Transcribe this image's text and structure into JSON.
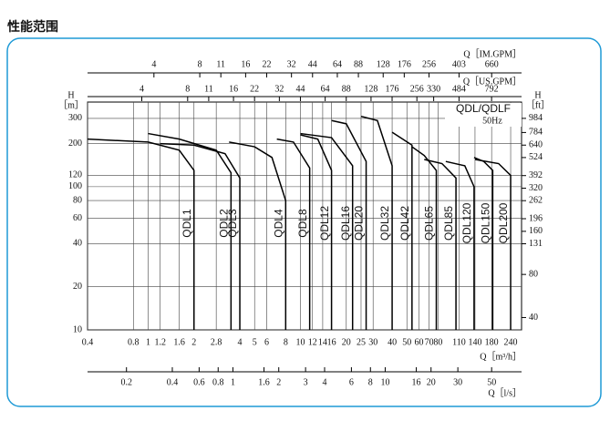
{
  "heading": "性能范围",
  "chart_data": {
    "type": "line",
    "log_x": true,
    "log_y": true,
    "grid": true,
    "legend_title": "QDL/QDLF",
    "legend_subtitle": "50Hz",
    "xlabel": "Q［m³/h］",
    "ylabel": [
      "H",
      "［m］"
    ],
    "y2label": [
      "H",
      "［ft］"
    ],
    "xlim": [
      0.4,
      283
    ],
    "xticks": [
      0.4,
      0.8,
      1,
      1.2,
      1.6,
      2,
      2.8,
      4,
      5,
      6,
      8,
      10,
      12,
      14,
      16,
      20,
      25,
      30,
      40,
      50,
      60,
      70,
      80,
      110,
      140,
      180,
      240
    ],
    "ylim": [
      10,
      390
    ],
    "yticks": [
      10,
      20,
      40,
      60,
      80,
      100,
      120,
      200,
      300
    ],
    "y2lim": [
      32.8,
      1279
    ],
    "y2ticks": [
      40,
      80,
      131,
      160,
      196,
      262,
      320,
      392,
      524,
      640,
      784,
      984
    ],
    "x2label": "Q［IM.GPM］",
    "x2lim": [
      1.466,
      1037
    ],
    "x2ticks": [
      4,
      8,
      11,
      16,
      22,
      32,
      44,
      64,
      88,
      128,
      176,
      256,
      403,
      660
    ],
    "x3label": "Q［US.GPM］",
    "x3lim": [
      1.761,
      1246
    ],
    "x3ticks": [
      4,
      8,
      11,
      16,
      22,
      32,
      44,
      64,
      88,
      128,
      176,
      256,
      330,
      484,
      792
    ],
    "x4label": "Q［l/s］",
    "x4lim": [
      0.111,
      78.6
    ],
    "x4ticks": [
      0.2,
      0.4,
      0.6,
      0.8,
      1,
      1.6,
      2,
      3,
      4,
      6,
      8,
      10,
      16,
      20,
      30,
      50
    ],
    "series": [
      {
        "name": "QDL1",
        "color": "#000000",
        "x": [
          0.4,
          1,
          1.6,
          2,
          2
        ],
        "values": [
          215,
          205,
          180,
          130,
          10
        ]
      },
      {
        "name": "QDL2",
        "color": "#000000",
        "x": [
          1,
          1.6,
          2.8,
          3.5,
          3.5
        ],
        "values": [
          235,
          215,
          180,
          125,
          10
        ]
      },
      {
        "name": "QDL3",
        "color": "#000000",
        "x": [
          1.2,
          2,
          3.2,
          4,
          4
        ],
        "values": [
          200,
          195,
          170,
          115,
          10
        ]
      },
      {
        "name": "QDL4",
        "color": "#000000",
        "x": [
          3.4,
          5,
          6.5,
          8,
          8
        ],
        "values": [
          205,
          190,
          160,
          80,
          10
        ]
      },
      {
        "name": "QDL8",
        "color": "#000000",
        "x": [
          7,
          9,
          11.5,
          11.5
        ],
        "values": [
          215,
          205,
          135,
          10
        ]
      },
      {
        "name": "QDL12",
        "color": "#000000",
        "x": [
          10,
          13,
          16,
          16
        ],
        "values": [
          230,
          215,
          130,
          10
        ]
      },
      {
        "name": "QDL16",
        "color": "#000000",
        "x": [
          10,
          16,
          22,
          22
        ],
        "values": [
          235,
          220,
          140,
          10
        ]
      },
      {
        "name": "QDL20",
        "color": "#000000",
        "x": [
          16,
          20,
          27,
          27
        ],
        "values": [
          290,
          275,
          150,
          10
        ]
      },
      {
        "name": "QDL32",
        "color": "#000000",
        "x": [
          25,
          32,
          40,
          40
        ],
        "values": [
          310,
          290,
          140,
          10
        ]
      },
      {
        "name": "QDL42",
        "color": "#000000",
        "x": [
          40,
          54,
          54
        ],
        "values": [
          240,
          195,
          10
        ]
      },
      {
        "name": "QDL65",
        "color": "#000000",
        "x": [
          54,
          65,
          78,
          78
        ],
        "values": [
          190,
          165,
          130,
          10
        ]
      },
      {
        "name": "QDL85",
        "color": "#000000",
        "x": [
          65,
          85,
          105,
          105
        ],
        "values": [
          155,
          145,
          115,
          10
        ]
      },
      {
        "name": "QDL120",
        "color": "#000000",
        "x": [
          90,
          120,
          138,
          138
        ],
        "values": [
          150,
          140,
          100,
          10
        ]
      },
      {
        "name": "QDL150",
        "color": "#000000",
        "x": [
          138,
          160,
          183,
          183
        ],
        "values": [
          160,
          150,
          130,
          10
        ]
      },
      {
        "name": "QDL200",
        "color": "#000000",
        "x": [
          140,
          200,
          240,
          240
        ],
        "values": [
          155,
          145,
          120,
          10
        ]
      }
    ]
  }
}
